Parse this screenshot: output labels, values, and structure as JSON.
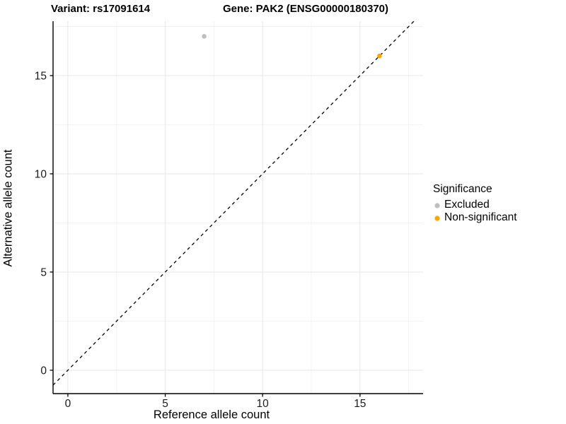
{
  "chart_data": {
    "type": "scatter",
    "titles": {
      "left": "Variant: rs17091614",
      "right": "Gene: PAK2 (ENSG00000180370)"
    },
    "xlabel": "Reference allele count",
    "ylabel": "Alternative allele count",
    "xlim": [
      -0.76,
      18.24
    ],
    "ylim": [
      -1.19,
      17.77
    ],
    "x_ticks": [
      0,
      5,
      10,
      15
    ],
    "y_ticks": [
      0,
      5,
      10,
      15
    ],
    "x_minor_ticks": [
      2.5,
      7.5,
      12.5,
      17.5
    ],
    "y_minor_ticks": [
      2.5,
      7.5,
      12.5,
      17.5
    ],
    "grid": {
      "major": true,
      "minor": true,
      "major_color": "#e7e7e7",
      "minor_color": "#f3f3f3"
    },
    "reference_line": {
      "type": "identity",
      "slope": 1,
      "intercept": 0,
      "style": "dashed",
      "color": "#000000"
    },
    "series": [
      {
        "name": "Excluded",
        "color": "#bebebe",
        "points": [
          [
            7,
            17
          ]
        ]
      },
      {
        "name": "Non-significant",
        "color": "#ffa500",
        "points": [
          [
            16,
            16
          ]
        ]
      }
    ],
    "legend": {
      "title": "Significance",
      "position": "right",
      "items": [
        {
          "label": "Excluded",
          "color": "#bebebe"
        },
        {
          "label": "Non-significant",
          "color": "#ffa500"
        }
      ]
    },
    "axis_color": "#000000",
    "tick_label_color": "#1a1a1a"
  }
}
